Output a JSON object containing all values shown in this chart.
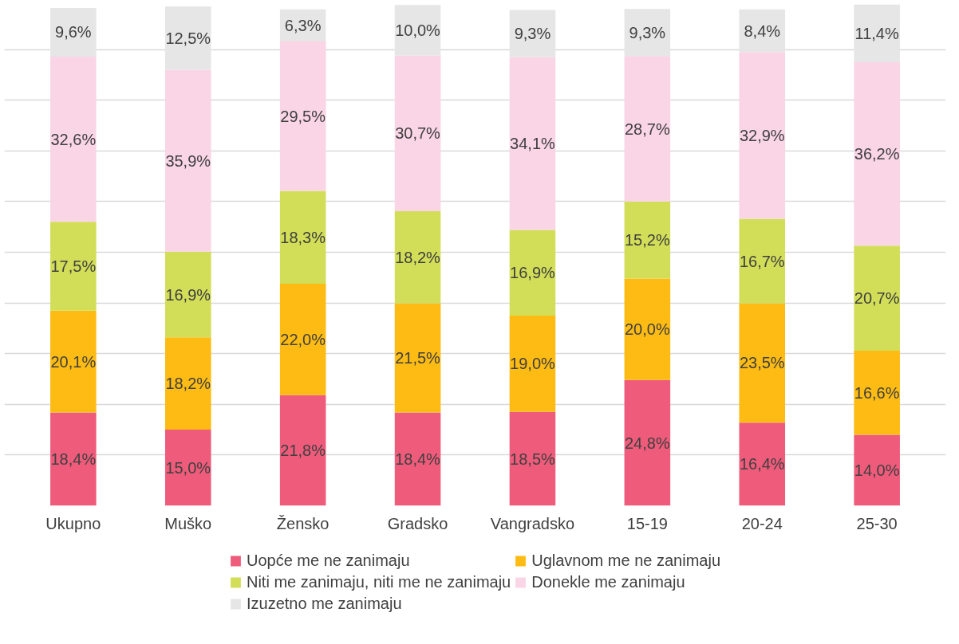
{
  "chart_data": {
    "type": "bar",
    "stacked": true,
    "grid": "y",
    "tick_labels": "x",
    "legend": "bottom",
    "categories": [
      "Ukupno",
      "Muško",
      "Žensko",
      "Gradsko",
      "Vangradsko",
      "15-19",
      "20-24",
      "25-30"
    ],
    "series": [
      {
        "name": "Uopće me ne zanimaju",
        "color": "#ef5b7b",
        "values": [
          18.4,
          15.0,
          21.8,
          18.4,
          18.5,
          24.8,
          16.4,
          14.0
        ],
        "value_labels": [
          "18,4%",
          "15,0%",
          "21,8%",
          "18,4%",
          "18,5%",
          "24,8%",
          "16,4%",
          "14,0%"
        ]
      },
      {
        "name": "Uglavnom me ne zanimaju",
        "color": "#fdbb13",
        "values": [
          20.1,
          18.2,
          22.0,
          21.5,
          19.0,
          20.0,
          23.5,
          16.6
        ],
        "value_labels": [
          "20,1%",
          "18,2%",
          "22,0%",
          "21,5%",
          "19,0%",
          "20,0%",
          "23,5%",
          "16,6%"
        ]
      },
      {
        "name": "Niti me zanimaju, niti me ne zanimaju",
        "color": "#d2de58",
        "values": [
          17.5,
          16.9,
          18.3,
          18.2,
          16.9,
          15.2,
          16.7,
          20.7
        ],
        "value_labels": [
          "17,5%",
          "16,9%",
          "18,3%",
          "18,2%",
          "16,9%",
          "15,2%",
          "16,7%",
          "20,7%"
        ]
      },
      {
        "name": "Donekle me zanimaju",
        "color": "#f9d5e5",
        "values": [
          32.6,
          35.9,
          29.5,
          30.7,
          34.1,
          28.7,
          32.9,
          36.2
        ],
        "value_labels": [
          "32,6%",
          "35,9%",
          "29,5%",
          "30,7%",
          "34,1%",
          "28,7%",
          "32,9%",
          "36,2%"
        ]
      },
      {
        "name": "Izuzetno me zanimaju",
        "color": "#e6e6e6",
        "values": [
          9.6,
          12.5,
          6.3,
          10.0,
          9.3,
          9.3,
          8.4,
          11.4
        ],
        "value_labels": [
          "9,6%",
          "12,5%",
          "6,3%",
          "10,0%",
          "9,3%",
          "9,3%",
          "8,4%",
          "11,4%"
        ]
      }
    ]
  }
}
